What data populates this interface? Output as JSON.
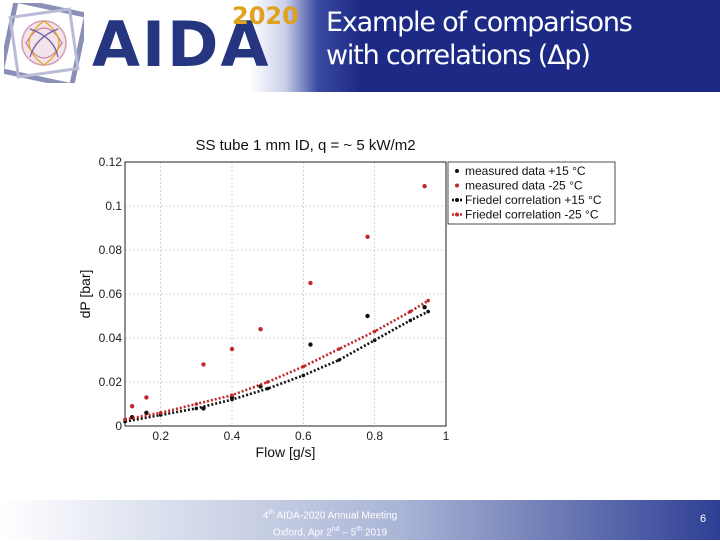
{
  "slide": {
    "title_line1": "Example of comparisons",
    "title_line2": "with correlations (Δp)",
    "logo_text": "AIDA",
    "logo_year": "2020",
    "footer_line1_pre": "4",
    "footer_line1_sup": "th",
    "footer_line1_post": " AIDA-2020 Annual Meeting",
    "footer_line2_pre": "Oxford, Apr 2",
    "footer_line2_sup1": "nd",
    "footer_line2_mid": " – 5",
    "footer_line2_sup2": "th",
    "footer_line2_post": " 2019",
    "page_number": "6"
  },
  "chart_data": {
    "type": "scatter",
    "title": "SS tube 1 mm ID, q = ~ 5 kW/m2",
    "xlabel": "Flow [g/s]",
    "ylabel": "dP [bar]",
    "xlim": [
      0.1,
      1.0
    ],
    "ylim": [
      0,
      0.12
    ],
    "xticks": [
      0.2,
      0.4,
      0.6,
      0.8,
      1
    ],
    "xtick_labels": [
      "0.2",
      "0.4",
      "0.6",
      "0.8",
      "1"
    ],
    "yticks": [
      0,
      0.02,
      0.04,
      0.06,
      0.08,
      0.1,
      0.12
    ],
    "ytick_labels": [
      "0",
      "0.02",
      "0.04",
      "0.06",
      "0.08",
      "0.1",
      "0.12"
    ],
    "grid": true,
    "legend_position": "top-right",
    "series": [
      {
        "name": "measured data +15 °C",
        "style": "point",
        "color": "#111111",
        "x": [
          0.12,
          0.16,
          0.32,
          0.4,
          0.48,
          0.62,
          0.78,
          0.94
        ],
        "y": [
          0.004,
          0.006,
          0.008,
          0.013,
          0.018,
          0.037,
          0.05,
          0.054
        ]
      },
      {
        "name": "measured data -25 °C",
        "style": "point",
        "color": "#c0282b",
        "x": [
          0.12,
          0.16,
          0.32,
          0.4,
          0.48,
          0.62,
          0.78,
          0.94
        ],
        "y": [
          0.009,
          0.013,
          0.028,
          0.035,
          0.044,
          0.065,
          0.086,
          0.109
        ]
      },
      {
        "name": "Friedel correlation +15 °C",
        "style": "dotted-line",
        "color": "#111111",
        "x": [
          0.1,
          0.2,
          0.3,
          0.4,
          0.5,
          0.6,
          0.7,
          0.8,
          0.9,
          0.95
        ],
        "y": [
          0.002,
          0.005,
          0.008,
          0.012,
          0.017,
          0.023,
          0.03,
          0.039,
          0.048,
          0.052
        ]
      },
      {
        "name": "Friedel correlation -25 °C",
        "style": "dotted-line",
        "color": "#c0282b",
        "x": [
          0.1,
          0.2,
          0.3,
          0.4,
          0.5,
          0.6,
          0.7,
          0.8,
          0.9,
          0.95
        ],
        "y": [
          0.003,
          0.006,
          0.01,
          0.014,
          0.02,
          0.027,
          0.035,
          0.043,
          0.052,
          0.057
        ]
      }
    ]
  }
}
